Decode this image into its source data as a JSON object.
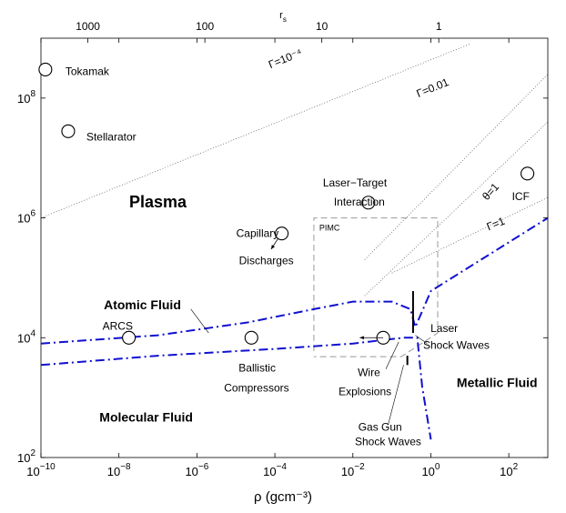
{
  "chart_data": {
    "type": "line",
    "xlabel": "ρ (gcm⁻³)",
    "ylabel": "",
    "x_scale": "log",
    "y_scale": "log",
    "xlim": [
      1e-10,
      1000
    ],
    "ylim": [
      100,
      1000000000.0
    ],
    "top_axis_label": "rs",
    "x_ticks": [
      {
        "value": 1e-10,
        "base": "10",
        "exp": "−10"
      },
      {
        "value": 1e-08,
        "base": "10",
        "exp": "−8"
      },
      {
        "value": 1e-06,
        "base": "10",
        "exp": "−6"
      },
      {
        "value": 0.0001,
        "base": "10",
        "exp": "−4"
      },
      {
        "value": 0.01,
        "base": "10",
        "exp": "−2"
      },
      {
        "value": 1,
        "base": "10",
        "exp": "0"
      },
      {
        "value": 100,
        "base": "10",
        "exp": "2"
      }
    ],
    "y_ticks": [
      {
        "value": 100,
        "base": "10",
        "exp": "2"
      },
      {
        "value": 10000,
        "base": "10",
        "exp": "4"
      },
      {
        "value": 1000000,
        "base": "10",
        "exp": "6"
      },
      {
        "value": 100000000,
        "base": "10",
        "exp": "8"
      }
    ],
    "top_ticks": [
      {
        "label": "1000",
        "rho": 1.6e-09
      },
      {
        "label": "100",
        "rho": 1.6e-06
      },
      {
        "label": "10",
        "rho": 0.0016
      },
      {
        "label": "1",
        "rho": 1.6
      }
    ],
    "region_labels": [
      {
        "text": "Plasma",
        "x": 1e-07,
        "y": 1500000,
        "bold": true,
        "size": 18
      },
      {
        "text": "Atomic Fluid",
        "x": 4e-08,
        "y": 30000,
        "bold": true,
        "size": 14
      },
      {
        "text": "Molecular Fluid",
        "x": 5e-08,
        "y": 400,
        "bold": true,
        "size": 14
      },
      {
        "text": "Metallic Fluid",
        "x": 50,
        "y": 1500,
        "bold": true,
        "size": 14
      }
    ],
    "experiments": [
      {
        "name": "Tokamak",
        "x": 1.3e-10,
        "y": 300000000,
        "labels": [
          {
            "text": "Tokamak",
            "dx": 22,
            "dy": 1
          }
        ]
      },
      {
        "name": "Stellarator",
        "x": 5e-10,
        "y": 28000000,
        "labels": [
          {
            "text": "Stellarator",
            "dx": 20,
            "dy": 5
          }
        ]
      },
      {
        "name": "Laser–Target Interaction",
        "x": 0.025,
        "y": 1800000,
        "labels": [
          {
            "text": "Laser−Target",
            "dx": -50,
            "dy": -23
          },
          {
            "text": "Interaction",
            "dx": -38,
            "dy": -2
          }
        ]
      },
      {
        "name": "Capillary Discharges",
        "x": 0.00015,
        "y": 550000,
        "labels": [
          {
            "text": "Capillary",
            "dx": -50,
            "dy": -1
          },
          {
            "text": "Discharges",
            "dx": -47,
            "dy": 29
          }
        ]
      },
      {
        "name": "ICF",
        "x": 300,
        "y": 5500000,
        "labels": [
          {
            "text": "ICF",
            "dx": -17,
            "dy": 24
          }
        ]
      },
      {
        "name": "ARCS",
        "x": 1.8e-08,
        "y": 10000,
        "labels": [
          {
            "text": "ARCS",
            "dx": -29,
            "dy": -14
          }
        ]
      },
      {
        "name": "Ballistic Compressors",
        "x": 2.5e-05,
        "y": 10000,
        "labels": [
          {
            "text": "Ballistic",
            "dx": -14,
            "dy": 32
          },
          {
            "text": "Compressors",
            "dx": -30,
            "dy": 54
          }
        ]
      },
      {
        "name": "Wire Explosions",
        "x": 0.06,
        "y": 10000,
        "labels": [
          {
            "text": "Wire",
            "dx": -28,
            "dy": 37
          },
          {
            "text": "Explosions",
            "dx": -49,
            "dy": 58
          }
        ]
      }
    ],
    "coupling_lines": [
      {
        "label": "Γ=10⁻⁴",
        "from": [
          1e-10,
          1000000
        ],
        "to": [
          10,
          800000000
        ],
        "label_at": [
          0.0002,
          400000000
        ],
        "angle": -22
      },
      {
        "label": "Γ=0.01",
        "from": [
          0.02,
          200000
        ],
        "to": [
          1000,
          250000000
        ],
        "label_at": [
          1.2,
          130000000
        ],
        "angle": -22
      },
      {
        "label": "θ=1",
        "from": [
          0.02,
          50000
        ],
        "to": [
          1000,
          40000000
        ],
        "label_at": [
          40,
          2500000
        ],
        "angle": -48
      },
      {
        "label": "Γ=1",
        "from": [
          0.1,
          120000
        ],
        "to": [
          1000,
          2200000
        ],
        "label_at": [
          50,
          700000
        ],
        "angle": -22
      }
    ],
    "phase_boundaries": [
      {
        "name": "upper boundary",
        "points": [
          [
            1e-10,
            8000
          ],
          [
            1e-07,
            11000
          ],
          [
            2e-05,
            18000
          ],
          [
            0.001,
            30000
          ],
          [
            0.01,
            40000
          ],
          [
            0.1,
            40000
          ],
          [
            0.3,
            30000
          ],
          [
            0.4,
            15000
          ],
          [
            1,
            60000
          ],
          [
            1000,
            1000000
          ]
        ]
      },
      {
        "name": "lower boundary",
        "points": [
          [
            1e-10,
            3500
          ],
          [
            1e-07,
            5000
          ],
          [
            0.0001,
            6500
          ],
          [
            0.01,
            8000
          ],
          [
            0.2,
            10000
          ],
          [
            0.45,
            10000
          ],
          [
            0.6,
            1500
          ],
          [
            1,
            200
          ]
        ]
      }
    ],
    "pimc_region": {
      "label": "PIMC",
      "x": [
        0.001,
        1.5
      ],
      "y": [
        6000,
        1000000
      ],
      "corner": [
        1.5,
        12000
      ]
    },
    "gas_gun": {
      "label1": "Gas Gun",
      "label2": "Shock Waves",
      "x": [
        0.25,
        0.25
      ],
      "y": [
        3500,
        5000
      ]
    },
    "laser_shock": {
      "label1": "Laser",
      "label2": "Shock Waves",
      "x": [
        0.35,
        0.35
      ],
      "y": [
        12000,
        60000
      ]
    },
    "wire_arrow": {
      "from": [
        0.06,
        10000
      ],
      "to": [
        0.015,
        10000
      ]
    },
    "capillary_arrow": {
      "from": [
        0.00012,
        450000
      ],
      "to": [
        8e-05,
        300000
      ]
    }
  }
}
